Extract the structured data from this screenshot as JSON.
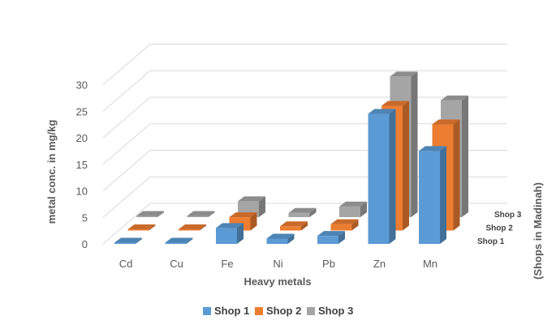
{
  "chart_data": {
    "type": "bar",
    "subtype": "3d-clustered-column",
    "title": "",
    "xlabel": "Heavy metals",
    "ylabel": "metal conc. in mg/kg",
    "zlabel": "(Shops in Madinah)",
    "categories": [
      "Cd",
      "Cu",
      "Fe",
      "Ni",
      "Pb",
      "Zn",
      "Mn"
    ],
    "depth_labels": [
      "Shop 1",
      "Shop 2",
      "Shop 3"
    ],
    "yticks": [
      0,
      5,
      10,
      15,
      20,
      25,
      30
    ],
    "ylim": [
      0,
      30
    ],
    "grid": true,
    "legend_position": "bottom",
    "series": [
      {
        "name": "Shop 1",
        "color": "#5B9BD5",
        "values": [
          0.1,
          0.1,
          3.0,
          1.0,
          1.5,
          24.5,
          17.5
        ]
      },
      {
        "name": "Shop 2",
        "color": "#ED7D31",
        "values": [
          0.1,
          0.1,
          2.5,
          0.8,
          1.2,
          23.5,
          20.0
        ]
      },
      {
        "name": "Shop 3",
        "color": "#A5A5A5",
        "values": [
          0.1,
          0.1,
          3.0,
          0.8,
          2.0,
          26.5,
          22.0
        ]
      }
    ]
  }
}
